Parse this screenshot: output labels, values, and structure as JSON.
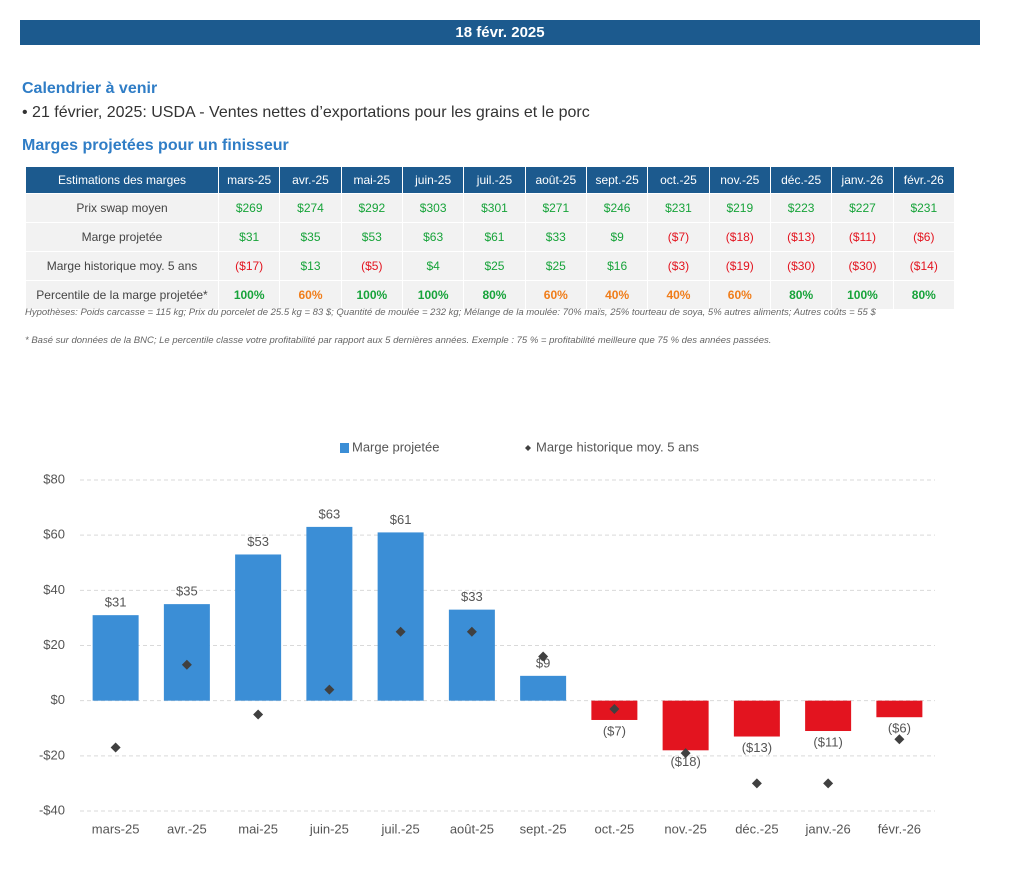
{
  "header": {
    "date": "18 févr. 2025"
  },
  "calendar": {
    "title": "Calendrier à venir",
    "items": [
      "• 21 février, 2025: USDA - Ventes nettes d’exportations pour les grains et le porc"
    ]
  },
  "table": {
    "title": "Marges projetées pour un finisseur",
    "header": [
      "Estimations des marges",
      "mars-25",
      "avr.-25",
      "mai-25",
      "juin-25",
      "juil.-25",
      "août-25",
      "sept.-25",
      "oct.-25",
      "nov.-25",
      "déc.-25",
      "janv.-26",
      "févr.-26"
    ],
    "rows": [
      [
        "Prix swap moyen",
        "$269",
        "$274",
        "$292",
        "$303",
        "$301",
        "$271",
        "$246",
        "$231",
        "$219",
        "$223",
        "$227",
        "$231"
      ],
      [
        "Marge projetée",
        "$31",
        "$35",
        "$53",
        "$63",
        "$61",
        "$33",
        "$9",
        "($7)",
        "($18)",
        "($13)",
        "($11)",
        "($6)"
      ],
      [
        "Marge historique moy. 5 ans",
        "($17)",
        "$13",
        "($5)",
        "$4",
        "$25",
        "$25",
        "$16",
        "($3)",
        "($19)",
        "($30)",
        "($30)",
        "($14)"
      ],
      [
        "Percentile de la marge projetée*",
        "100%",
        "60%",
        "100%",
        "100%",
        "80%",
        "60%",
        "40%",
        "40%",
        "60%",
        "80%",
        "100%",
        "80%"
      ]
    ]
  },
  "notes": [
    "Hypothèses: Poids carcasse = 115 kg; Prix du porcelet de 25.5 kg = 83 $; Quantité de moulée = 232 kg; Mélange de la moulée: 70% maïs, 25% tourteau de soya, 5% autres aliments; Autres coûts = 55 $",
    "* Basé sur données de la BNC; Le percentile classe votre profitabilité par rapport aux 5 dernières années. Exemple : 75 % = profitabilité meilleure que 75 % des années passées."
  ],
  "chart_data": {
    "type": "bar",
    "categories": [
      "mars-25",
      "avr.-25",
      "mai-25",
      "juin-25",
      "juil.-25",
      "août-25",
      "sept.-25",
      "oct.-25",
      "nov.-25",
      "déc.-25",
      "janv.-26",
      "févr.-26"
    ],
    "series": [
      {
        "name": "Marge projetée",
        "type": "bar",
        "color": "#3b8ed6",
        "negative_color": "#e3141f",
        "values": [
          31,
          35,
          53,
          63,
          61,
          33,
          9,
          -7,
          -18,
          -13,
          -11,
          -6
        ],
        "value_labels": [
          "$31",
          "$35",
          "$53",
          "$63",
          "$61",
          "$33",
          "$9",
          "($7)",
          "($18)",
          "($13)",
          "($11)",
          "($6)"
        ]
      },
      {
        "name": "Marge historique moy. 5 ans",
        "type": "scatter",
        "marker": "diamond",
        "color": "#404040",
        "values": [
          -17,
          13,
          -5,
          4,
          25,
          25,
          16,
          -3,
          -19,
          -30,
          -30,
          -14
        ]
      }
    ],
    "ylim": [
      -40,
      80
    ],
    "yticks": [
      {
        "value": -40,
        "label": "-$40"
      },
      {
        "value": -20,
        "label": "-$20"
      },
      {
        "value": 0,
        "label": "$0"
      },
      {
        "value": 20,
        "label": "$20"
      },
      {
        "value": 40,
        "label": "$40"
      },
      {
        "value": 60,
        "label": "$60"
      },
      {
        "value": 80,
        "label": "$80"
      }
    ],
    "grid": true,
    "legend": "top"
  }
}
